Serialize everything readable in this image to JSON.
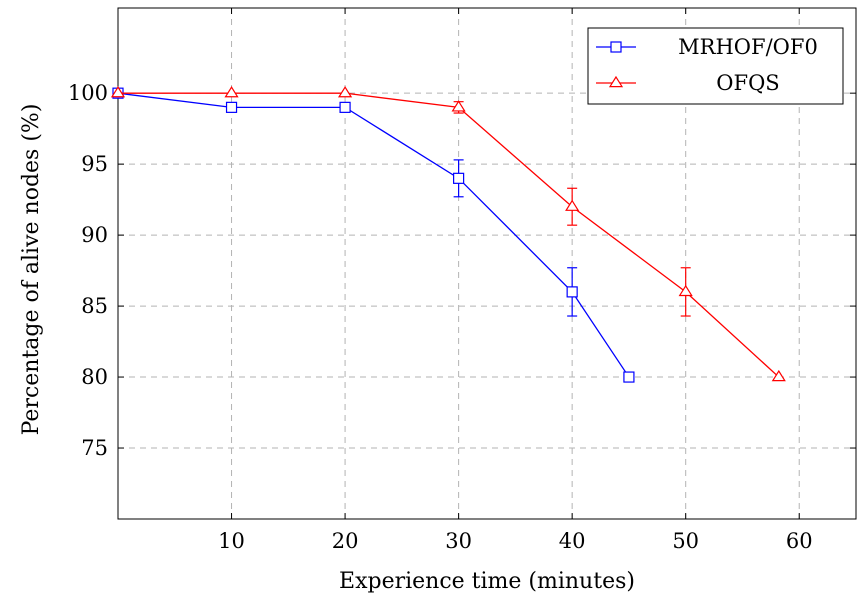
{
  "chart_data": {
    "type": "line",
    "title": "",
    "xlabel": "Experience time (minutes)",
    "ylabel": "Percentage of alive nodes (%)",
    "xlim": [
      0,
      65
    ],
    "ylim": [
      70,
      106
    ],
    "xticks": [
      10,
      20,
      30,
      40,
      50,
      60
    ],
    "yticks": [
      75,
      80,
      85,
      90,
      95,
      100
    ],
    "grid": true,
    "legend_position": "top-right",
    "series": [
      {
        "name": "MRHOF/OF0",
        "color": "#0000ff",
        "marker": "square",
        "x": [
          0,
          10,
          20,
          30,
          40,
          45
        ],
        "y": [
          100,
          99,
          99,
          94,
          86,
          80
        ],
        "err": [
          0,
          0,
          0,
          1.3,
          1.7,
          0
        ]
      },
      {
        "name": "OFQS",
        "color": "#ff0000",
        "marker": "triangle",
        "x": [
          0,
          10,
          20,
          30,
          40,
          50,
          58.2
        ],
        "y": [
          100,
          100,
          100,
          99,
          92,
          86,
          80
        ],
        "err": [
          0,
          0,
          0,
          0.4,
          1.3,
          1.7,
          0
        ]
      }
    ]
  }
}
